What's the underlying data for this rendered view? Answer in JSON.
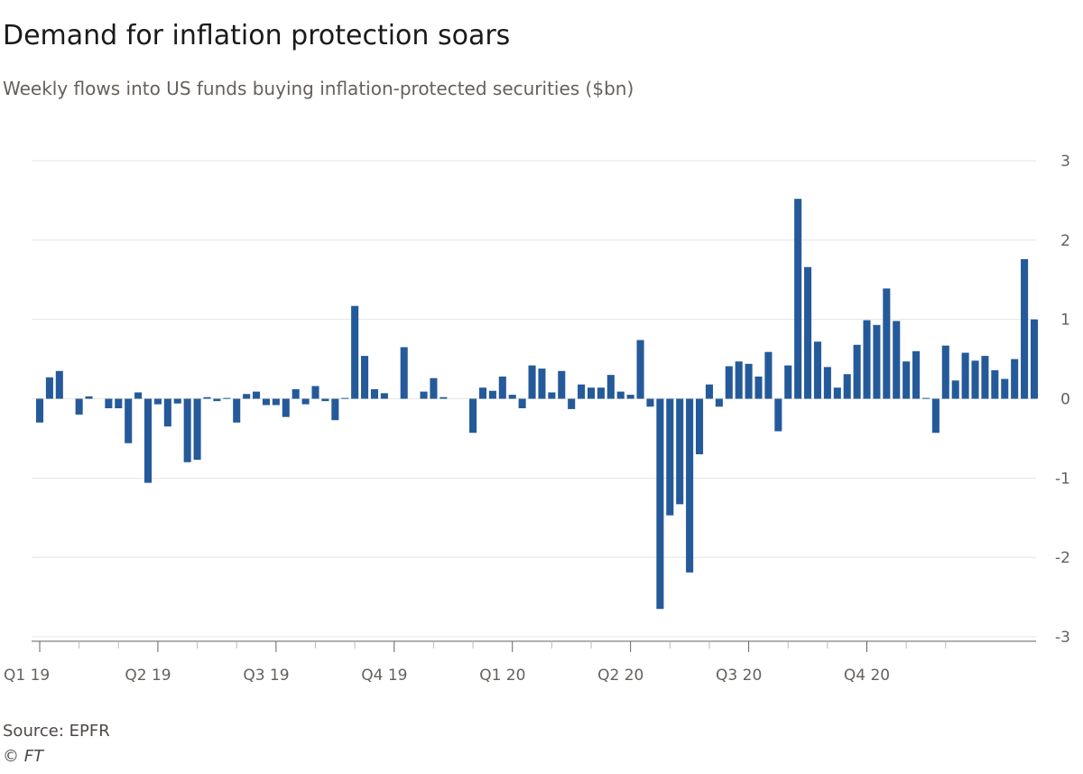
{
  "title": "Demand for inflation protection soars",
  "subtitle": "Weekly flows into US funds buying inflation-protected securities ($bn)",
  "source": "Source: EPFR",
  "credit": "© FT",
  "colors": {
    "bar": "#255a9a",
    "grid": "#e8e4e0",
    "axis": "#66605c",
    "text": "#66605c"
  },
  "chart_data": {
    "type": "bar",
    "title": "Demand for inflation protection soars",
    "subtitle": "Weekly flows into US funds buying inflation-protected securities ($bn)",
    "xlabel": "",
    "ylabel": "",
    "ylim": [
      -3,
      3
    ],
    "y_ticks": [
      3,
      2,
      1,
      0,
      -1,
      -2,
      -3
    ],
    "y_axis_position": "right",
    "grid": true,
    "x_tick_labels": [
      "Q1 19",
      "Q2 19",
      "Q3 19",
      "Q4 19",
      "Q1 20",
      "Q2 20",
      "Q3 20",
      "Q4 20"
    ],
    "x_tick_label_week_index": [
      0,
      11,
      23,
      35,
      47,
      59,
      71,
      84
    ],
    "series": [
      {
        "values": [
          -0.3,
          0.27,
          0.35,
          0.0,
          -0.2,
          0.03,
          0.0,
          -0.12,
          -0.12,
          -0.56,
          0.08,
          -1.06,
          -0.07,
          -0.35,
          -0.06,
          -0.8,
          -0.77,
          0.02,
          -0.03,
          0.01,
          -0.3,
          0.06,
          0.09,
          -0.08,
          -0.08,
          -0.23,
          0.12,
          -0.07,
          0.16,
          -0.03,
          -0.27,
          0.01,
          1.17,
          0.54,
          0.12,
          0.07,
          0.0,
          0.65,
          0.0,
          0.09,
          0.26,
          0.02,
          0.0,
          0.0,
          -0.43,
          0.14,
          0.1,
          0.28,
          0.05,
          -0.12,
          0.42,
          0.38,
          0.08,
          0.35,
          -0.13,
          0.18,
          0.14,
          0.14,
          0.3,
          0.09,
          0.05,
          0.74,
          -0.1,
          -2.65,
          -1.47,
          -1.33,
          -2.19,
          -0.7,
          0.18,
          -0.1,
          0.41,
          0.47,
          0.44,
          0.28,
          0.59,
          -0.41,
          0.42,
          2.52,
          1.66,
          0.72,
          0.4,
          0.14,
          0.31,
          0.68,
          0.99,
          0.93,
          1.39,
          0.98,
          0.47,
          0.6,
          0.01,
          -0.43,
          0.67,
          0.23,
          0.58,
          0.48,
          0.54,
          0.36,
          0.25,
          0.5,
          1.76,
          1.0
        ]
      }
    ]
  }
}
